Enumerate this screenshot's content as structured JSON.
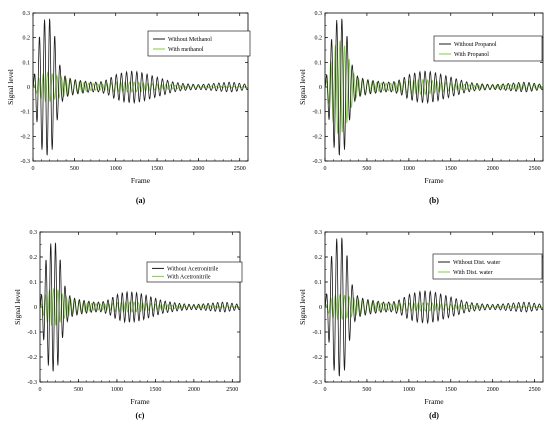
{
  "figure": {
    "panels": [
      {
        "label": "(a)",
        "legend": [
          "Without Methanol",
          "With methanol"
        ]
      },
      {
        "label": "(b)",
        "legend": [
          "Without Propanol",
          "With Propanol"
        ]
      },
      {
        "label": "(c)",
        "legend": [
          "Without Acetronitrile",
          "With Acetronitrile"
        ]
      },
      {
        "label": "(d)",
        "legend": [
          "Without Dist. water",
          "With Dist. water"
        ]
      }
    ]
  },
  "chart_data": [
    {
      "type": "line",
      "panel_label": "(a)",
      "xlabel": "Frame",
      "ylabel": "Signal level",
      "xlim": [
        0,
        2600
      ],
      "ylim": [
        -0.3,
        0.3
      ],
      "xticks": [
        0,
        500,
        1000,
        1500,
        2000,
        2500
      ],
      "yticks": [
        -0.3,
        -0.2,
        -0.1,
        0,
        0.1,
        0.2,
        0.3
      ],
      "grid": false,
      "legend_position": "top-right",
      "colors": [
        "#1a1a1a",
        "#7fd13b"
      ],
      "series": [
        {
          "name": "Without Methanol",
          "x": [
            0,
            50,
            100,
            150,
            200,
            250,
            300,
            350,
            400,
            500,
            600,
            700,
            800,
            900,
            1000,
            1100,
            1200,
            1300,
            1400,
            1500,
            1600,
            1700,
            1800,
            1900,
            2000,
            2100,
            2200,
            2300,
            2400,
            2500,
            2600
          ],
          "y": [
            0.0,
            0.15,
            0.25,
            0.28,
            0.28,
            0.24,
            0.12,
            0.06,
            0.04,
            0.03,
            0.025,
            0.02,
            0.02,
            0.03,
            0.05,
            0.06,
            0.065,
            0.06,
            0.05,
            0.04,
            0.03,
            0.02,
            0.015,
            0.012,
            0.01,
            0.012,
            0.015,
            0.018,
            0.02,
            0.015,
            0.01
          ]
        },
        {
          "name": "With methanol",
          "x": [
            0,
            50,
            100,
            150,
            200,
            250,
            300,
            350,
            400,
            500,
            600,
            700,
            800,
            900,
            1000,
            1100,
            1200,
            1300,
            1400,
            1500,
            1600,
            1700,
            1800,
            1900,
            2000,
            2100,
            2200,
            2300,
            2400,
            2500,
            2600
          ],
          "y": [
            0.0,
            0.03,
            0.05,
            0.06,
            0.06,
            0.05,
            0.045,
            0.04,
            0.035,
            0.025,
            0.02,
            0.015,
            0.012,
            0.015,
            0.02,
            0.02,
            0.02,
            0.018,
            0.015,
            0.012,
            0.01,
            0.008,
            0.006,
            0.005,
            0.004,
            0.004,
            0.004,
            0.004,
            0.004,
            0.003,
            0.002
          ]
        }
      ]
    },
    {
      "type": "line",
      "panel_label": "(b)",
      "xlabel": "Frame",
      "ylabel": "Signal level",
      "xlim": [
        0,
        2600
      ],
      "ylim": [
        -0.3,
        0.3
      ],
      "xticks": [
        0,
        500,
        1000,
        1500,
        2000,
        2500
      ],
      "yticks": [
        -0.3,
        -0.2,
        -0.1,
        0,
        0.1,
        0.2,
        0.3
      ],
      "grid": false,
      "legend_position": "top-right",
      "colors": [
        "#1a1a1a",
        "#7fd13b"
      ],
      "series": [
        {
          "name": "Without Propanol",
          "x": [
            0,
            50,
            100,
            150,
            200,
            250,
            300,
            350,
            400,
            500,
            600,
            700,
            800,
            900,
            1000,
            1100,
            1200,
            1300,
            1400,
            1500,
            1600,
            1700,
            1800,
            1900,
            2000,
            2100,
            2200,
            2300,
            2400,
            2500,
            2600
          ],
          "y": [
            0.0,
            0.14,
            0.24,
            0.28,
            0.28,
            0.24,
            0.12,
            0.06,
            0.04,
            0.03,
            0.025,
            0.02,
            0.02,
            0.03,
            0.05,
            0.06,
            0.065,
            0.06,
            0.05,
            0.04,
            0.03,
            0.02,
            0.015,
            0.012,
            0.01,
            0.012,
            0.015,
            0.018,
            0.02,
            0.015,
            0.01
          ]
        },
        {
          "name": "With Propanol",
          "x": [
            0,
            50,
            100,
            150,
            200,
            250,
            300,
            350,
            400,
            500,
            600,
            700,
            800,
            900,
            1000,
            1100,
            1200,
            1300,
            1400,
            1500,
            1600,
            1700,
            1800,
            1900,
            2000,
            2100,
            2200,
            2300,
            2400,
            2500,
            2600
          ],
          "y": [
            0.0,
            0.08,
            0.15,
            0.19,
            0.19,
            0.16,
            0.1,
            0.05,
            0.035,
            0.025,
            0.02,
            0.015,
            0.015,
            0.02,
            0.025,
            0.03,
            0.03,
            0.025,
            0.02,
            0.015,
            0.012,
            0.01,
            0.008,
            0.008,
            0.007,
            0.008,
            0.009,
            0.01,
            0.01,
            0.008,
            0.006
          ]
        }
      ]
    },
    {
      "type": "line",
      "panel_label": "(c)",
      "xlabel": "Frame",
      "ylabel": "Signal level",
      "xlim": [
        0,
        2600
      ],
      "ylim": [
        -0.3,
        0.3
      ],
      "xticks": [
        0,
        500,
        1000,
        1500,
        2000,
        2500
      ],
      "yticks": [
        -0.3,
        -0.2,
        -0.1,
        0,
        0.1,
        0.2,
        0.3
      ],
      "grid": false,
      "legend_position": "top-right",
      "colors": [
        "#1a1a1a",
        "#7fd13b"
      ],
      "series": [
        {
          "name": "Without Acetronitrile",
          "x": [
            0,
            50,
            100,
            150,
            200,
            250,
            300,
            350,
            400,
            500,
            600,
            700,
            800,
            900,
            1000,
            1100,
            1200,
            1300,
            1400,
            1500,
            1600,
            1700,
            1800,
            1900,
            2000,
            2100,
            2200,
            2300,
            2400,
            2500,
            2600
          ],
          "y": [
            0.0,
            0.14,
            0.23,
            0.26,
            0.26,
            0.22,
            0.11,
            0.06,
            0.04,
            0.03,
            0.025,
            0.02,
            0.02,
            0.03,
            0.05,
            0.06,
            0.06,
            0.055,
            0.045,
            0.035,
            0.025,
            0.02,
            0.015,
            0.012,
            0.01,
            0.012,
            0.015,
            0.018,
            0.02,
            0.015,
            0.01
          ]
        },
        {
          "name": "With Acetronitrile",
          "x": [
            0,
            50,
            100,
            150,
            200,
            250,
            300,
            350,
            400,
            500,
            600,
            700,
            800,
            900,
            1000,
            1100,
            1200,
            1300,
            1400,
            1500,
            1600,
            1700,
            1800,
            1900,
            2000,
            2100,
            2200,
            2300,
            2400,
            2500,
            2600
          ],
          "y": [
            0.0,
            0.04,
            0.065,
            0.075,
            0.075,
            0.065,
            0.05,
            0.04,
            0.03,
            0.022,
            0.018,
            0.014,
            0.012,
            0.014,
            0.018,
            0.02,
            0.02,
            0.018,
            0.015,
            0.012,
            0.01,
            0.008,
            0.006,
            0.005,
            0.005,
            0.005,
            0.005,
            0.005,
            0.005,
            0.004,
            0.003
          ]
        }
      ]
    },
    {
      "type": "line",
      "panel_label": "(d)",
      "xlabel": "Frame",
      "ylabel": "Signal level",
      "xlim": [
        0,
        2600
      ],
      "ylim": [
        -0.3,
        0.3
      ],
      "xticks": [
        0,
        500,
        1000,
        1500,
        2000,
        2500
      ],
      "yticks": [
        -0.3,
        -0.2,
        -0.1,
        0,
        0.1,
        0.2,
        0.3
      ],
      "grid": false,
      "legend_position": "top-right",
      "colors": [
        "#1a1a1a",
        "#7fd13b"
      ],
      "series": [
        {
          "name": "Without Dist. water",
          "x": [
            0,
            50,
            100,
            150,
            200,
            250,
            300,
            350,
            400,
            500,
            600,
            700,
            800,
            900,
            1000,
            1100,
            1200,
            1300,
            1400,
            1500,
            1600,
            1700,
            1800,
            1900,
            2000,
            2100,
            2200,
            2300,
            2400,
            2500,
            2600
          ],
          "y": [
            0.0,
            0.15,
            0.25,
            0.28,
            0.28,
            0.24,
            0.12,
            0.06,
            0.04,
            0.03,
            0.025,
            0.02,
            0.02,
            0.03,
            0.05,
            0.06,
            0.065,
            0.06,
            0.05,
            0.04,
            0.03,
            0.02,
            0.015,
            0.012,
            0.01,
            0.012,
            0.015,
            0.018,
            0.02,
            0.015,
            0.01
          ]
        },
        {
          "name": "With Dist. water",
          "x": [
            0,
            50,
            100,
            150,
            200,
            250,
            300,
            350,
            400,
            500,
            600,
            700,
            800,
            900,
            1000,
            1100,
            1200,
            1300,
            1400,
            1500,
            1600,
            1700,
            1800,
            1900,
            2000,
            2100,
            2200,
            2300,
            2400,
            2500,
            2600
          ],
          "y": [
            0.0,
            0.03,
            0.045,
            0.05,
            0.05,
            0.045,
            0.04,
            0.035,
            0.03,
            0.022,
            0.018,
            0.014,
            0.012,
            0.014,
            0.016,
            0.016,
            0.016,
            0.015,
            0.013,
            0.011,
            0.009,
            0.007,
            0.006,
            0.005,
            0.004,
            0.004,
            0.004,
            0.004,
            0.004,
            0.003,
            0.002
          ]
        }
      ]
    }
  ]
}
